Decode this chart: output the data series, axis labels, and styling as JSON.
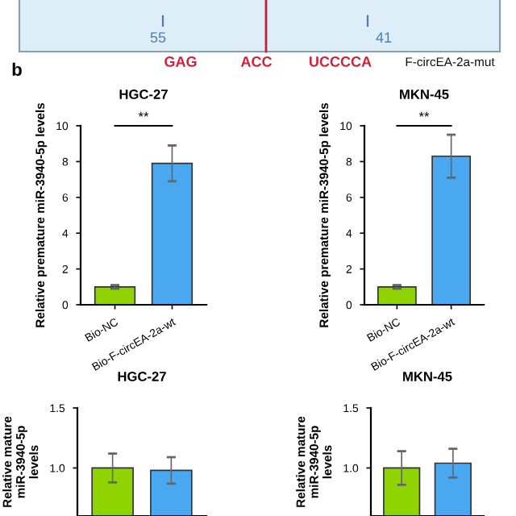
{
  "chart_data": [
    {
      "type": "other",
      "annotations": [
        "55",
        "41",
        "GAG",
        "ACC",
        "UCCCCA",
        "F-circEA-2a-mut"
      ],
      "colors": [
        "#4a7fb5",
        "#4a7fb5",
        "#d0203a",
        "#d0203a",
        "#d0203a",
        "#111111"
      ]
    },
    {
      "type": "bar",
      "title": "HGC-27",
      "ylabel": "Relative premature miR-3940-5p levels",
      "categories": [
        "Bio-NC",
        "Bio-F-circEA-2a-wt"
      ],
      "values": [
        1.0,
        7.9
      ],
      "errors": [
        0.1,
        1.0
      ],
      "colors": [
        "#8fd400",
        "#4aa8f0"
      ],
      "ylim": [
        0,
        10
      ],
      "yticks": [
        0,
        2,
        4,
        6,
        8,
        10
      ],
      "annotations": [
        "b",
        "**"
      ],
      "grid": false,
      "legend": false
    },
    {
      "type": "bar",
      "title": "MKN-45",
      "ylabel": "Relative premature miR-3940-5p levels",
      "categories": [
        "Bio-NC",
        "Bio-F-circEA-2a-wt"
      ],
      "values": [
        1.0,
        8.3
      ],
      "errors": [
        0.1,
        1.2
      ],
      "colors": [
        "#8fd400",
        "#4aa8f0"
      ],
      "ylim": [
        0,
        10
      ],
      "yticks": [
        0,
        2,
        4,
        6,
        8,
        10
      ],
      "annotations": [
        "**"
      ],
      "grid": false,
      "legend": false
    },
    {
      "type": "bar",
      "title": "HGC-27",
      "ylabel": "Relative mature miR-3940-5p levels",
      "categories": [
        null,
        null
      ],
      "values": [
        1.0,
        0.98
      ],
      "errors": [
        0.12,
        0.11
      ],
      "colors": [
        "#8fd400",
        "#4aa8f0"
      ],
      "ylim": [
        0.6,
        1.5
      ],
      "yticks": [
        {
          "value": 1.0,
          "label": "1.0"
        },
        1.5
      ],
      "grid": false,
      "legend": false
    },
    {
      "type": "bar",
      "title": "MKN-45",
      "ylabel": "Relative mature miR-3940-5p levels",
      "categories": [
        null,
        null
      ],
      "values": [
        1.0,
        1.04
      ],
      "errors": [
        0.14,
        0.12
      ],
      "colors": [
        "#8fd400",
        "#4aa8f0"
      ],
      "ylim": [
        0.6,
        1.5
      ],
      "yticks": [
        {
          "value": 1.0,
          "label": "1.0"
        },
        1.5
      ],
      "grid": false,
      "legend": false
    }
  ]
}
